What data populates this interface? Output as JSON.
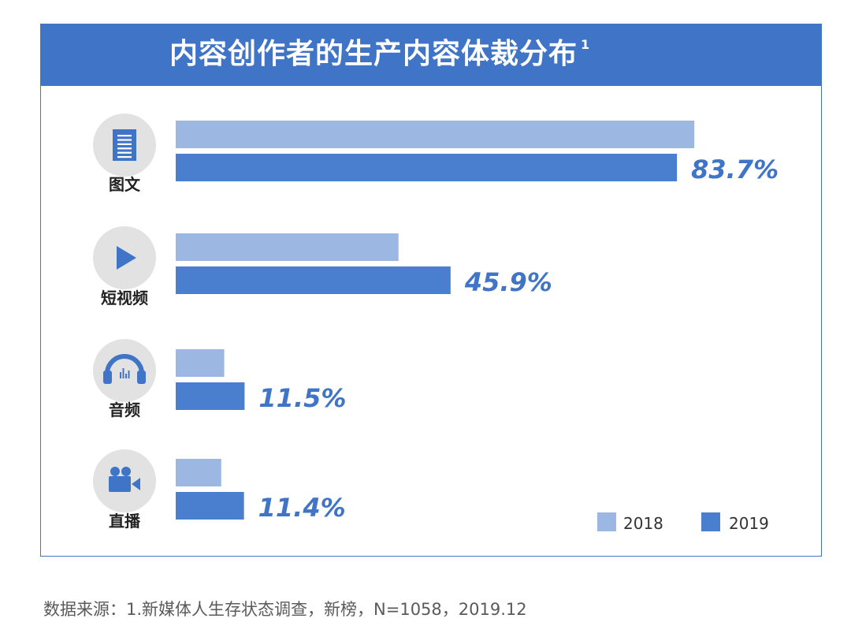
{
  "header": {
    "title": "内容创作者的生产内容体裁分布",
    "superscript": "1"
  },
  "icons": {
    "text": "document-icon",
    "short_video": "play-icon",
    "audio": "headphones-icon",
    "live": "video-camera-icon"
  },
  "colors": {
    "series_2018": "#9db7e3",
    "series_2019": "#4a7fcf",
    "accent": "#3f74c6",
    "icon_bg": "#e2e2e2"
  },
  "chart_data": {
    "type": "bar",
    "orientation": "horizontal",
    "title": "内容创作者的生产内容体裁分布",
    "categories": [
      "图文",
      "短视频",
      "音频",
      "直播"
    ],
    "series": [
      {
        "name": "2018",
        "values": [
          86.6,
          37.2,
          8.1,
          7.6
        ]
      },
      {
        "name": "2019",
        "values": [
          83.7,
          45.9,
          11.5,
          11.4
        ]
      }
    ],
    "data_labels": [
      "83.7%",
      "45.9%",
      "11.5%",
      "11.4%"
    ],
    "xlim": [
      0,
      100
    ],
    "grid": false,
    "legend": "bottom-right"
  },
  "footer": {
    "source": "数据来源：1.新媒体人生存状态调查，新榜，N=1058，2019.12"
  }
}
